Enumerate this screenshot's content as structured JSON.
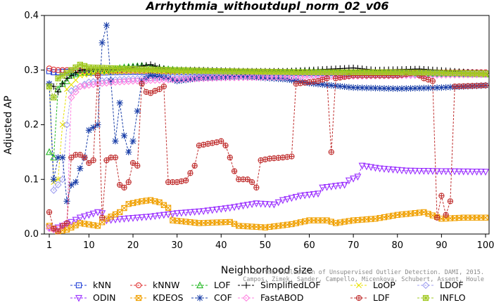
{
  "chart_data": {
    "type": "line",
    "title": "Arrhythmia_withoutdupl_norm_02_v06",
    "xlabel": "Neighborhood size",
    "ylabel": "Adjusted AP",
    "xlim": [
      1,
      100
    ],
    "ylim": [
      0,
      0.4
    ],
    "xticks": [
      1,
      10,
      20,
      30,
      40,
      50,
      60,
      70,
      80,
      90,
      100
    ],
    "yticks": [
      0.0,
      0.1,
      0.2,
      0.3,
      0.4
    ],
    "grid": false,
    "legend_position": "bottom",
    "watermark": [
      "Campos, Zimek, Sander, Campello, Micenkova, Schubert, Assent, Houle",
      "On the Evaluation of Unsupervised Outlier Detection. DAMI, 2015."
    ],
    "series": [
      {
        "name": "kNN",
        "color": "#1f3fd6",
        "marker": "square",
        "dash": "3,2",
        "points": [
          [
            1,
            0.298
          ],
          [
            2,
            0.296
          ],
          [
            3,
            0.296
          ],
          [
            4,
            0.297
          ],
          [
            5,
            0.297
          ],
          [
            10,
            0.295
          ],
          [
            20,
            0.297
          ],
          [
            30,
            0.296
          ],
          [
            50,
            0.295
          ],
          [
            70,
            0.295
          ],
          [
            100,
            0.294
          ]
        ]
      },
      {
        "name": "kNNW",
        "color": "#e03030",
        "marker": "circle",
        "dash": "3,2",
        "points": [
          [
            1,
            0.303
          ],
          [
            2,
            0.301
          ],
          [
            3,
            0.3
          ],
          [
            5,
            0.3
          ],
          [
            10,
            0.298
          ],
          [
            20,
            0.299
          ],
          [
            30,
            0.298
          ],
          [
            50,
            0.297
          ],
          [
            70,
            0.296
          ],
          [
            85,
            0.296
          ],
          [
            100,
            0.296
          ]
        ]
      },
      {
        "name": "LOF",
        "color": "#22b822",
        "marker": "triangle",
        "dash": "3,2",
        "points": [
          [
            1,
            0.15
          ],
          [
            2,
            0.14
          ],
          [
            3,
            0.265
          ],
          [
            4,
            0.275
          ],
          [
            5,
            0.28
          ],
          [
            6,
            0.29
          ],
          [
            8,
            0.295
          ],
          [
            10,
            0.297
          ],
          [
            14,
            0.3
          ],
          [
            18,
            0.305
          ],
          [
            22,
            0.308
          ],
          [
            26,
            0.303
          ],
          [
            30,
            0.3
          ],
          [
            40,
            0.298
          ],
          [
            50,
            0.296
          ],
          [
            60,
            0.298
          ],
          [
            70,
            0.296
          ],
          [
            85,
            0.294
          ],
          [
            100,
            0.292
          ]
        ]
      },
      {
        "name": "SimplifiedLOF",
        "color": "#000000",
        "marker": "plus",
        "dash": "3,2",
        "points": [
          [
            1,
            0.275
          ],
          [
            2,
            0.27
          ],
          [
            3,
            0.26
          ],
          [
            4,
            0.275
          ],
          [
            5,
            0.285
          ],
          [
            8,
            0.3
          ],
          [
            12,
            0.302
          ],
          [
            16,
            0.3
          ],
          [
            20,
            0.305
          ],
          [
            24,
            0.31
          ],
          [
            28,
            0.3
          ],
          [
            35,
            0.3
          ],
          [
            45,
            0.298
          ],
          [
            55,
            0.298
          ],
          [
            65,
            0.302
          ],
          [
            70,
            0.304
          ],
          [
            75,
            0.3
          ],
          [
            85,
            0.302
          ],
          [
            100,
            0.294
          ]
        ]
      },
      {
        "name": "LoOP",
        "color": "#e8e000",
        "marker": "cross",
        "dash": "3,2",
        "points": [
          [
            1,
            0.27
          ],
          [
            2,
            0.095
          ],
          [
            3,
            0.1
          ],
          [
            4,
            0.2
          ],
          [
            5,
            0.265
          ],
          [
            8,
            0.29
          ],
          [
            12,
            0.295
          ],
          [
            20,
            0.298
          ],
          [
            30,
            0.296
          ],
          [
            50,
            0.294
          ],
          [
            70,
            0.294
          ],
          [
            100,
            0.292
          ]
        ]
      },
      {
        "name": "LDOF",
        "color": "#a0a0f0",
        "marker": "diamond",
        "dash": "3,2",
        "points": [
          [
            1,
            0.275
          ],
          [
            2,
            0.08
          ],
          [
            3,
            0.09
          ],
          [
            4,
            0.1
          ],
          [
            5,
            0.2
          ],
          [
            6,
            0.262
          ],
          [
            10,
            0.278
          ],
          [
            15,
            0.282
          ],
          [
            20,
            0.284
          ],
          [
            25,
            0.286
          ],
          [
            30,
            0.288
          ],
          [
            40,
            0.29
          ],
          [
            50,
            0.292
          ],
          [
            60,
            0.292
          ],
          [
            70,
            0.292
          ],
          [
            80,
            0.292
          ],
          [
            100,
            0.292
          ]
        ]
      },
      {
        "name": "ODIN",
        "color": "#9b30ff",
        "marker": "triangle-down",
        "dash": "3,2",
        "points": [
          [
            1,
            0.012
          ],
          [
            2,
            0.01
          ],
          [
            3,
            0.012
          ],
          [
            5,
            0.018
          ],
          [
            8,
            0.03
          ],
          [
            12,
            0.04
          ],
          [
            13,
            0.038
          ],
          [
            14,
            0.025
          ],
          [
            18,
            0.028
          ],
          [
            24,
            0.032
          ],
          [
            30,
            0.038
          ],
          [
            36,
            0.042
          ],
          [
            42,
            0.048
          ],
          [
            48,
            0.056
          ],
          [
            52,
            0.054
          ],
          [
            54,
            0.062
          ],
          [
            58,
            0.07
          ],
          [
            62,
            0.074
          ],
          [
            63,
            0.085
          ],
          [
            68,
            0.09
          ],
          [
            69,
            0.098
          ],
          [
            71,
            0.105
          ],
          [
            72,
            0.125
          ],
          [
            76,
            0.12
          ],
          [
            82,
            0.116
          ],
          [
            90,
            0.115
          ],
          [
            100,
            0.114
          ]
        ]
      },
      {
        "name": "KDEOS",
        "color": "#f0a000",
        "marker": "square-x",
        "dash": "3,2",
        "points": [
          [
            1,
            0.015
          ],
          [
            3,
            0.005
          ],
          [
            5,
            0.008
          ],
          [
            8,
            0.02
          ],
          [
            12,
            0.015
          ],
          [
            14,
            0.028
          ],
          [
            17,
            0.04
          ],
          [
            19,
            0.055
          ],
          [
            22,
            0.06
          ],
          [
            24,
            0.062
          ],
          [
            26,
            0.058
          ],
          [
            28,
            0.048
          ],
          [
            29,
            0.025
          ],
          [
            35,
            0.02
          ],
          [
            42,
            0.022
          ],
          [
            44,
            0.015
          ],
          [
            50,
            0.012
          ],
          [
            56,
            0.018
          ],
          [
            60,
            0.025
          ],
          [
            64,
            0.025
          ],
          [
            66,
            0.02
          ],
          [
            70,
            0.025
          ],
          [
            75,
            0.028
          ],
          [
            80,
            0.035
          ],
          [
            86,
            0.04
          ],
          [
            90,
            0.028
          ],
          [
            95,
            0.03
          ],
          [
            100,
            0.03
          ]
        ]
      },
      {
        "name": "COF",
        "color": "#1a3fa8",
        "marker": "star",
        "dash": "3,2",
        "points": [
          [
            1,
            0.275
          ],
          [
            2,
            0.1
          ],
          [
            3,
            0.14
          ],
          [
            4,
            0.14
          ],
          [
            5,
            0.06
          ],
          [
            6,
            0.09
          ],
          [
            7,
            0.095
          ],
          [
            8,
            0.12
          ],
          [
            9,
            0.14
          ],
          [
            10,
            0.19
          ],
          [
            11,
            0.195
          ],
          [
            12,
            0.2
          ],
          [
            13,
            0.35
          ],
          [
            14,
            0.382
          ],
          [
            15,
            0.28
          ],
          [
            16,
            0.17
          ],
          [
            17,
            0.24
          ],
          [
            18,
            0.18
          ],
          [
            19,
            0.15
          ],
          [
            20,
            0.17
          ],
          [
            22,
            0.28
          ],
          [
            24,
            0.29
          ],
          [
            28,
            0.285
          ],
          [
            30,
            0.28
          ],
          [
            35,
            0.285
          ],
          [
            45,
            0.288
          ],
          [
            55,
            0.283
          ],
          [
            60,
            0.276
          ],
          [
            70,
            0.268
          ],
          [
            80,
            0.266
          ],
          [
            90,
            0.268
          ],
          [
            100,
            0.272
          ]
        ]
      },
      {
        "name": "FastABOD",
        "color": "#ff80e0",
        "marker": "diamond",
        "dash": "3,2",
        "points": [
          [
            1,
            0.01
          ],
          [
            2,
            0.008
          ],
          [
            3,
            0.01
          ],
          [
            4,
            0.015
          ],
          [
            5,
            0.02
          ],
          [
            6,
            0.25
          ],
          [
            8,
            0.27
          ],
          [
            12,
            0.275
          ],
          [
            16,
            0.278
          ],
          [
            20,
            0.28
          ],
          [
            30,
            0.283
          ],
          [
            40,
            0.286
          ],
          [
            60,
            0.288
          ],
          [
            80,
            0.29
          ],
          [
            100,
            0.292
          ]
        ]
      },
      {
        "name": "LDF",
        "color": "#c03030",
        "marker": "circle-plus",
        "dash": "3,2",
        "points": [
          [
            1,
            0.04
          ],
          [
            2,
            0.01
          ],
          [
            3,
            0.005
          ],
          [
            4,
            0.015
          ],
          [
            5,
            0.02
          ],
          [
            6,
            0.14
          ],
          [
            7,
            0.145
          ],
          [
            8,
            0.145
          ],
          [
            9,
            0.14
          ],
          [
            10,
            0.13
          ],
          [
            11,
            0.135
          ],
          [
            12,
            0.29
          ],
          [
            13,
            0.03
          ],
          [
            14,
            0.135
          ],
          [
            15,
            0.14
          ],
          [
            16,
            0.14
          ],
          [
            17,
            0.09
          ],
          [
            18,
            0.085
          ],
          [
            19,
            0.095
          ],
          [
            20,
            0.13
          ],
          [
            21,
            0.125
          ],
          [
            22,
            0.275
          ],
          [
            23,
            0.26
          ],
          [
            24,
            0.258
          ],
          [
            25,
            0.262
          ],
          [
            26,
            0.265
          ],
          [
            27,
            0.27
          ],
          [
            28,
            0.095
          ],
          [
            30,
            0.095
          ],
          [
            32,
            0.098
          ],
          [
            34,
            0.125
          ],
          [
            35,
            0.162
          ],
          [
            37,
            0.165
          ],
          [
            39,
            0.168
          ],
          [
            40,
            0.17
          ],
          [
            41,
            0.162
          ],
          [
            42,
            0.14
          ],
          [
            43,
            0.115
          ],
          [
            44,
            0.1
          ],
          [
            46,
            0.1
          ],
          [
            47,
            0.095
          ],
          [
            48,
            0.085
          ],
          [
            49,
            0.135
          ],
          [
            51,
            0.138
          ],
          [
            54,
            0.14
          ],
          [
            56,
            0.142
          ],
          [
            57,
            0.275
          ],
          [
            62,
            0.28
          ],
          [
            64,
            0.285
          ],
          [
            65,
            0.15
          ],
          [
            66,
            0.285
          ],
          [
            70,
            0.29
          ],
          [
            80,
            0.29
          ],
          [
            84,
            0.295
          ],
          [
            86,
            0.285
          ],
          [
            88,
            0.28
          ],
          [
            89,
            0.03
          ],
          [
            90,
            0.07
          ],
          [
            91,
            0.035
          ],
          [
            92,
            0.06
          ],
          [
            93,
            0.27
          ],
          [
            100,
            0.272
          ]
        ]
      },
      {
        "name": "INFLO",
        "color": "#a0c820",
        "marker": "square-star",
        "dash": "3,2",
        "points": [
          [
            1,
            0.27
          ],
          [
            2,
            0.25
          ],
          [
            3,
            0.285
          ],
          [
            5,
            0.295
          ],
          [
            8,
            0.31
          ],
          [
            10,
            0.305
          ],
          [
            20,
            0.302
          ],
          [
            40,
            0.298
          ],
          [
            60,
            0.296
          ],
          [
            80,
            0.296
          ],
          [
            100,
            0.294
          ]
        ]
      }
    ]
  }
}
